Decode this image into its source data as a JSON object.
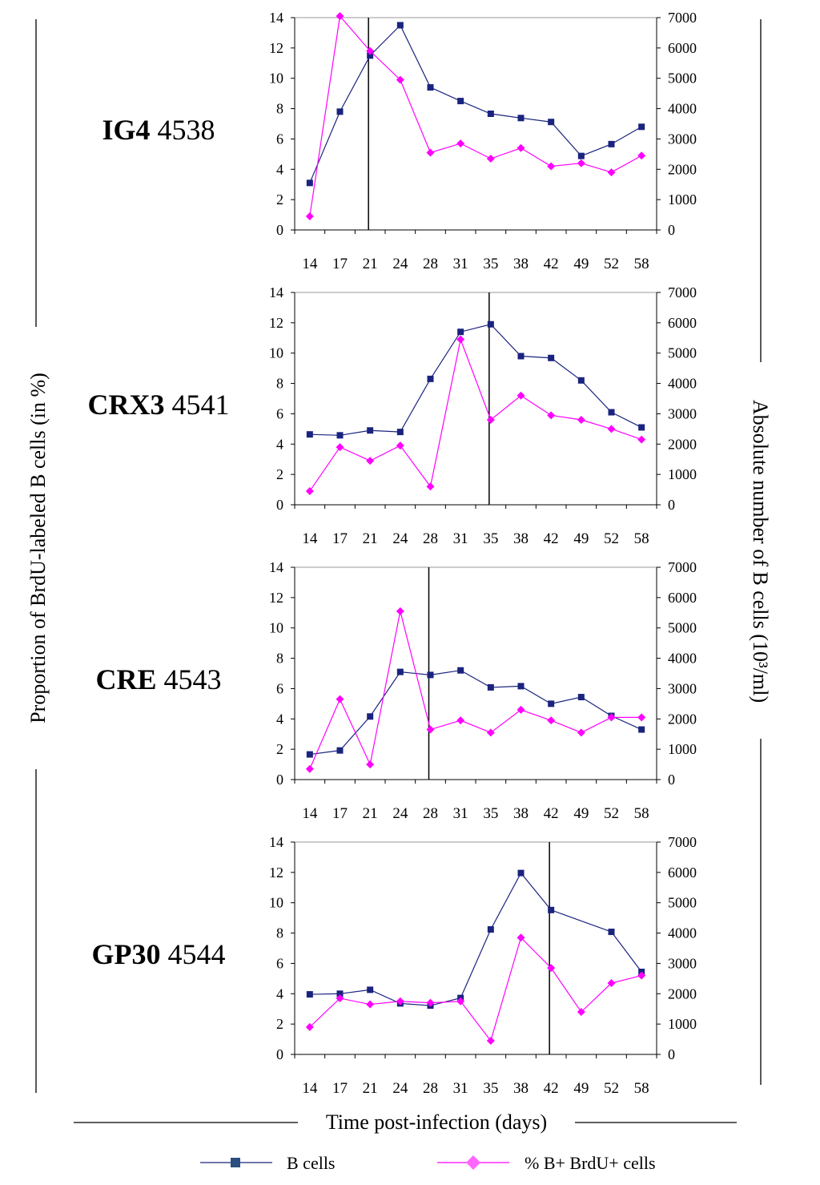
{
  "figure": {
    "left_axis_label": "Proportion of BrdU-labeled B cells (in %)",
    "right_axis_label": "Absolute number of B cells (10³/ml)",
    "x_axis_label": "Time post-infection (days)",
    "legend": [
      {
        "name": "B cells",
        "color": "#1a237e",
        "marker": "square"
      },
      {
        "name": "% B+ BrdU+ cells",
        "color": "#ff00ff",
        "marker": "diamond"
      }
    ]
  },
  "chart_data": [
    {
      "type": "line",
      "label_bold": "IG4",
      "label_id": "4538",
      "categories": [
        "14",
        "17",
        "21",
        "24",
        "28",
        "31",
        "35",
        "38",
        "42",
        "49",
        "52",
        "58"
      ],
      "vline_category": "21",
      "ylim_left": [
        0,
        14
      ],
      "yticks_left": [
        0,
        2,
        4,
        6,
        8,
        10,
        12,
        14
      ],
      "ylim_right": [
        0,
        7000
      ],
      "yticks_right": [
        0,
        1000,
        2000,
        3000,
        4000,
        5000,
        6000,
        7000
      ],
      "series": [
        {
          "name": "B cells",
          "axis": "right",
          "color": "#1a237e",
          "marker": "square",
          "values": [
            1550,
            3900,
            5750,
            6750,
            4700,
            4250,
            3830,
            3690,
            3560,
            2440,
            2830,
            3400
          ]
        },
        {
          "name": "% B+ BrdU+ cells",
          "axis": "left",
          "color": "#ff00ff",
          "marker": "diamond",
          "values": [
            0.9,
            14.1,
            11.8,
            9.9,
            5.1,
            5.7,
            4.7,
            5.4,
            4.2,
            4.4,
            3.8,
            4.9
          ]
        }
      ]
    },
    {
      "type": "line",
      "label_bold": "CRX3",
      "label_id": "4541",
      "categories": [
        "14",
        "17",
        "21",
        "24",
        "28",
        "31",
        "35",
        "38",
        "42",
        "49",
        "52",
        "58"
      ],
      "vline_category": "35",
      "ylim_left": [
        0,
        14
      ],
      "yticks_left": [
        0,
        2,
        4,
        6,
        8,
        10,
        12,
        14
      ],
      "ylim_right": [
        0,
        7000
      ],
      "yticks_right": [
        0,
        1000,
        2000,
        3000,
        4000,
        5000,
        6000,
        7000
      ],
      "series": [
        {
          "name": "B cells",
          "axis": "right",
          "color": "#1a237e",
          "marker": "square",
          "values": [
            2320,
            2290,
            2450,
            2400,
            4150,
            5700,
            5950,
            4900,
            4840,
            4100,
            3050,
            2550
          ]
        },
        {
          "name": "% B+ BrdU+ cells",
          "axis": "left",
          "color": "#ff00ff",
          "marker": "diamond",
          "values": [
            0.9,
            3.8,
            2.9,
            3.9,
            1.2,
            10.9,
            5.6,
            7.2,
            5.9,
            5.6,
            5.0,
            4.3
          ]
        }
      ]
    },
    {
      "type": "line",
      "label_bold": "CRE",
      "label_id": "4543",
      "categories": [
        "14",
        "17",
        "21",
        "24",
        "28",
        "31",
        "35",
        "38",
        "42",
        "49",
        "52",
        "58"
      ],
      "vline_category": "28",
      "ylim_left": [
        0,
        14
      ],
      "yticks_left": [
        0,
        2,
        4,
        6,
        8,
        10,
        12,
        14
      ],
      "ylim_right": [
        0,
        7000
      ],
      "yticks_right": [
        0,
        1000,
        2000,
        3000,
        4000,
        5000,
        6000,
        7000
      ],
      "series": [
        {
          "name": "B cells",
          "axis": "right",
          "color": "#1a237e",
          "marker": "square",
          "values": [
            830,
            960,
            2080,
            3550,
            3450,
            3600,
            3040,
            3080,
            2500,
            2720,
            2100,
            1650
          ]
        },
        {
          "name": "% B+ BrdU+ cells",
          "axis": "left",
          "color": "#ff00ff",
          "marker": "diamond",
          "values": [
            0.7,
            5.3,
            1.0,
            11.1,
            3.3,
            3.9,
            3.1,
            4.6,
            3.9,
            3.1,
            4.1,
            4.1
          ]
        }
      ]
    },
    {
      "type": "line",
      "label_bold": "GP30",
      "label_id": "4544",
      "categories": [
        "14",
        "17",
        "21",
        "24",
        "28",
        "31",
        "35",
        "38",
        "42",
        "49",
        "52",
        "58"
      ],
      "vline_category": "42",
      "ylim_left": [
        0,
        14
      ],
      "yticks_left": [
        0,
        2,
        4,
        6,
        8,
        10,
        12,
        14
      ],
      "ylim_right": [
        0,
        7000
      ],
      "yticks_right": [
        0,
        1000,
        2000,
        3000,
        4000,
        5000,
        6000,
        7000
      ],
      "series": [
        {
          "name": "B cells",
          "axis": "right",
          "color": "#1a237e",
          "marker": "square",
          "values": [
            1980,
            2000,
            2130,
            1680,
            1610,
            1860,
            4120,
            5980,
            4760,
            null,
            4040,
            2720
          ]
        },
        {
          "name": "% B+ BrdU+ cells",
          "axis": "left",
          "color": "#ff00ff",
          "marker": "diamond",
          "values": [
            1.8,
            3.7,
            3.3,
            3.5,
            3.4,
            3.5,
            0.9,
            7.7,
            5.7,
            2.8,
            4.7,
            5.2
          ]
        }
      ]
    }
  ]
}
